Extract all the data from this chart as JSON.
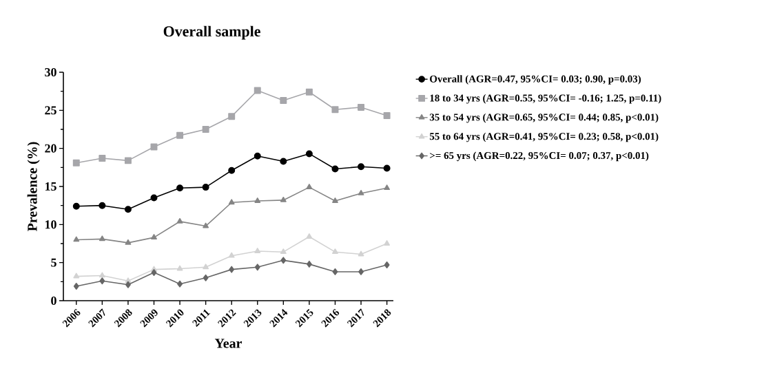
{
  "chart_data": {
    "type": "line",
    "title": "Overall sample",
    "xlabel": "Year",
    "ylabel": "Prevalence (%)",
    "categories": [
      "2006",
      "2007",
      "2008",
      "2009",
      "2010",
      "2011",
      "2012",
      "2013",
      "2014",
      "2015",
      "2016",
      "2017",
      "2018"
    ],
    "ylim": [
      0,
      30
    ],
    "yticks": [
      0,
      5,
      10,
      15,
      20,
      25,
      30
    ],
    "grid": false,
    "legend": "right",
    "series": [
      {
        "name": "Overall (AGR=0.47, 95%CI= 0.03; 0.90, p=0.03)",
        "color": "#000000",
        "marker": "circle",
        "values": [
          12.4,
          12.5,
          12.0,
          13.5,
          14.8,
          14.9,
          17.1,
          19.0,
          18.3,
          19.3,
          17.3,
          17.6,
          17.4
        ]
      },
      {
        "name": "18 to 34 yrs (AGR=0.55, 95%CI= -0.16; 1.25, p=0.11)",
        "color": "#a6a6aa",
        "marker": "square",
        "values": [
          18.1,
          18.7,
          18.4,
          20.2,
          21.7,
          22.5,
          24.2,
          27.6,
          26.3,
          27.4,
          25.1,
          25.4,
          24.3
        ]
      },
      {
        "name": "35 to 54 yrs (AGR=0.65, 95%CI= 0.44; 0.85, p<0.01)",
        "color": "#858585",
        "marker": "triangle",
        "values": [
          8.0,
          8.1,
          7.6,
          8.3,
          10.4,
          9.8,
          12.9,
          13.1,
          13.2,
          14.9,
          13.1,
          14.1,
          14.8
        ]
      },
      {
        "name": "55 to 64 yrs (AGR=0.41, 95%CI= 0.23; 0.58, p<0.01)",
        "color": "#d2d2d2",
        "marker": "triangle",
        "values": [
          3.2,
          3.3,
          2.6,
          4.1,
          4.2,
          4.4,
          5.9,
          6.5,
          6.4,
          8.4,
          6.4,
          6.1,
          7.5
        ]
      },
      {
        "name": ">= 65 yrs (AGR=0.22, 95%CI= 0.07; 0.37, p<0.01)",
        "color": "#666666",
        "marker": "diamond",
        "values": [
          1.9,
          2.6,
          2.1,
          3.7,
          2.2,
          3.0,
          4.1,
          4.4,
          5.3,
          4.8,
          3.8,
          3.8,
          4.7
        ]
      }
    ]
  }
}
